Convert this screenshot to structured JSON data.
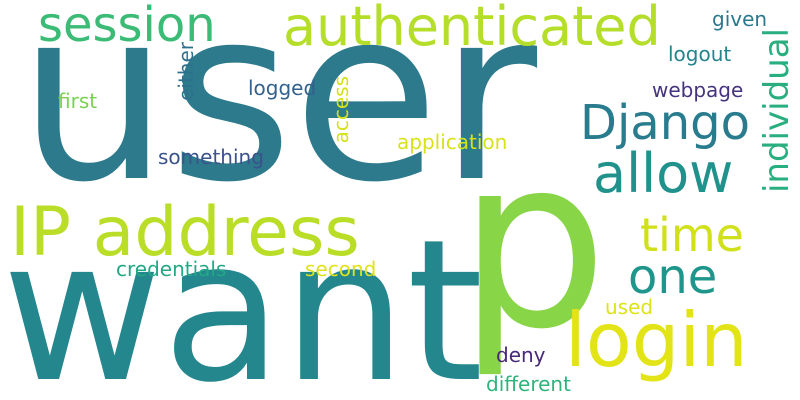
{
  "words": [
    {
      "text": "user",
      "color": "#2c7a8c"
    },
    {
      "text": "want",
      "color": "#24878e"
    },
    {
      "text": "p",
      "color": "#89d548"
    },
    {
      "text": "IP address",
      "color": "#bade28"
    },
    {
      "text": "login",
      "color": "#e3e418"
    },
    {
      "text": "authenticated",
      "color": "#b5de2b"
    },
    {
      "text": "session",
      "color": "#3bbb75"
    },
    {
      "text": "individual",
      "color": "#29af7f"
    },
    {
      "text": "Django",
      "color": "#287c8e"
    },
    {
      "text": "allow",
      "color": "#21918c"
    },
    {
      "text": "time",
      "color": "#d0e11c"
    },
    {
      "text": "one",
      "color": "#1f968b"
    },
    {
      "text": "given",
      "color": "#2a788e"
    },
    {
      "text": "logout",
      "color": "#25848e"
    },
    {
      "text": "webpage",
      "color": "#46337e"
    },
    {
      "text": "first",
      "color": "#7ad151"
    },
    {
      "text": "either",
      "color": "#2d708e"
    },
    {
      "text": "logged",
      "color": "#34618d"
    },
    {
      "text": "access",
      "color": "#d5e21a"
    },
    {
      "text": "application",
      "color": "#d8e219"
    },
    {
      "text": "something",
      "color": "#3b528b"
    },
    {
      "text": "credentials",
      "color": "#22a884"
    },
    {
      "text": "second",
      "color": "#e0e318"
    },
    {
      "text": "used",
      "color": "#dde318"
    },
    {
      "text": "deny",
      "color": "#482878"
    },
    {
      "text": "different",
      "color": "#2fb47c"
    }
  ]
}
